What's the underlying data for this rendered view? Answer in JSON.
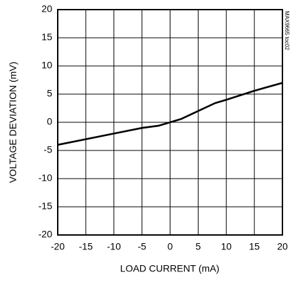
{
  "chart_data": {
    "type": "line",
    "x_label": "LOAD CURRENT (mA)",
    "y_label": "VOLTAGE DEVIATION (mV)",
    "annotation": "MAX9665 toc02",
    "x": [
      -20,
      -15,
      -10,
      -8,
      -5,
      -2,
      0,
      2,
      5,
      8,
      10,
      15,
      20
    ],
    "series": [
      {
        "name": "deviation",
        "color": "#000000",
        "values": [
          -4,
          -3,
          -2,
          -1.6,
          -1,
          -0.6,
          0,
          0.6,
          2,
          3.4,
          4,
          5.6,
          7
        ]
      }
    ],
    "xlim": [
      -20,
      20
    ],
    "xticks": [
      -20,
      -15,
      -10,
      -5,
      0,
      5,
      10,
      15,
      20
    ],
    "ylim": [
      -20,
      20
    ],
    "yticks": [
      -20,
      -15,
      -10,
      -5,
      0,
      5,
      10,
      15,
      20
    ],
    "grid": true
  }
}
